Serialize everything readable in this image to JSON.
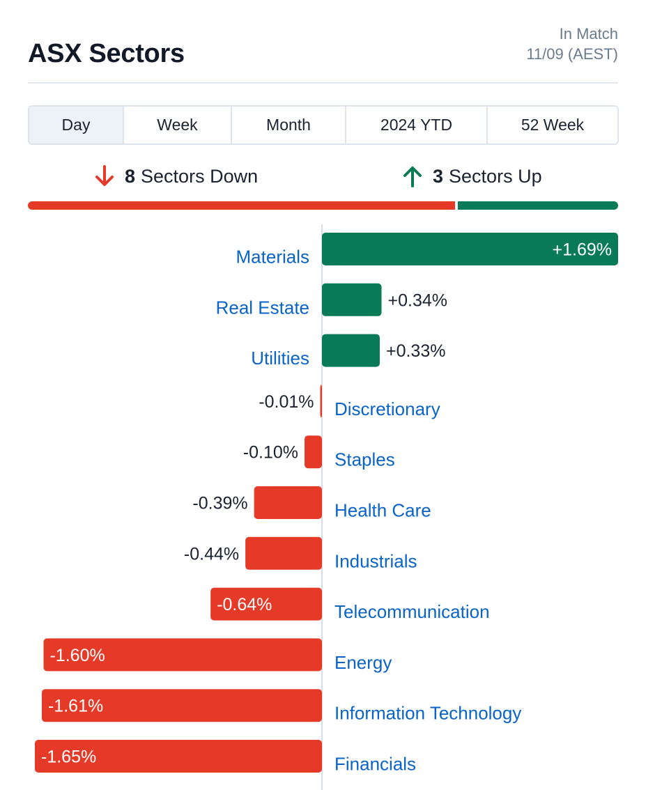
{
  "header": {
    "title": "ASX Sectors",
    "status_line1": "In Match",
    "status_line2": "11/09 (AEST)"
  },
  "tabs": [
    {
      "label": "Day",
      "active": true
    },
    {
      "label": "Week",
      "active": false
    },
    {
      "label": "Month",
      "active": false
    },
    {
      "label": "2024 YTD",
      "active": false
    },
    {
      "label": "52 Week",
      "active": false
    }
  ],
  "summary": {
    "down_count": "8",
    "down_label": "Sectors Down",
    "up_count": "3",
    "up_label": "Sectors Up",
    "down_icon": "arrow-down-icon",
    "up_icon": "arrow-up-icon"
  },
  "colors": {
    "negative": "#e63a28",
    "positive": "#087a55",
    "link": "#0a64c8",
    "axis": "#d6dde6"
  },
  "chart_data": {
    "type": "bar",
    "orientation": "horizontal",
    "categories": [
      "Materials",
      "Real Estate",
      "Utilities",
      "Discretionary",
      "Staples",
      "Health Care",
      "Industrials",
      "Telecommunication",
      "Energy",
      "Information Technology",
      "Financials"
    ],
    "values": [
      1.69,
      0.34,
      0.33,
      -0.01,
      -0.1,
      -0.39,
      -0.44,
      -0.64,
      -1.6,
      -1.61,
      -1.65
    ],
    "value_labels": [
      "+1.69%",
      "+0.34%",
      "+0.33%",
      "-0.01%",
      "-0.10%",
      "-0.39%",
      "-0.44%",
      "-0.64%",
      "-1.60%",
      "-1.61%",
      "-1.65%"
    ],
    "unit": "%",
    "xlim": [
      -1.65,
      1.69
    ]
  }
}
